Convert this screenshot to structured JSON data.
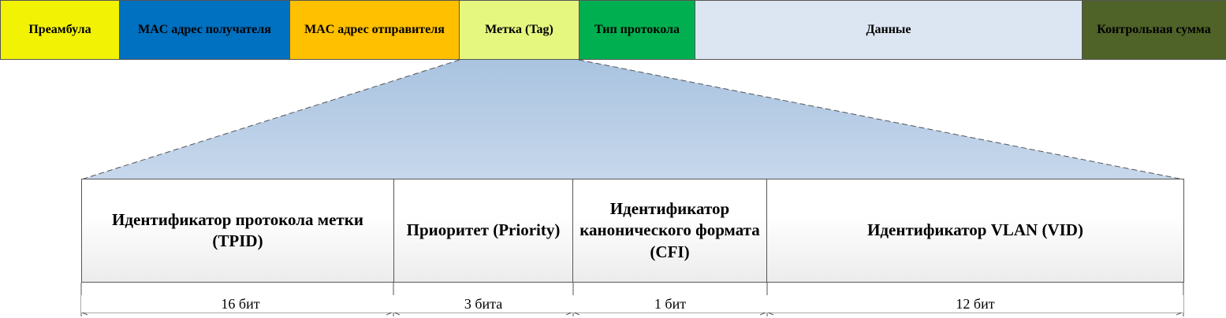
{
  "frame_fields": [
    {
      "id": "preamble",
      "label": "Преамбула",
      "color": "#f2f205",
      "text_color": "#000000"
    },
    {
      "id": "dst-mac",
      "label": "MAC адрес получателя",
      "color": "#0070c0",
      "text_color": "#000000"
    },
    {
      "id": "src-mac",
      "label": "MAC адрес отправителя",
      "color": "#ffc000",
      "text_color": "#000000"
    },
    {
      "id": "tag",
      "label": "Метка (Tag)",
      "color": "#e6f780",
      "text_color": "#000000"
    },
    {
      "id": "ethertype",
      "label": "Тип протокола",
      "color": "#00b050",
      "text_color": "#000000"
    },
    {
      "id": "data",
      "label": "Данные",
      "color": "#dce6f2",
      "text_color": "#000000"
    },
    {
      "id": "checksum",
      "label": "Контрольная сумма",
      "color": "#4f6228",
      "text_color": "#000000"
    }
  ],
  "tag_fields": [
    {
      "id": "tpid",
      "label": "Идентификатор протокола метки (TPID)",
      "bits": "16 бит"
    },
    {
      "id": "priority",
      "label": "Приоритет (Priority)",
      "bits": "3 бита"
    },
    {
      "id": "cfi",
      "label": "Идентификатор канонического формата (CFI)",
      "bits": "1 бит"
    },
    {
      "id": "vid",
      "label": "Идентификатор VLAN (VID)",
      "bits": "12 бит"
    }
  ],
  "expansion_color": "#b9cfe6"
}
